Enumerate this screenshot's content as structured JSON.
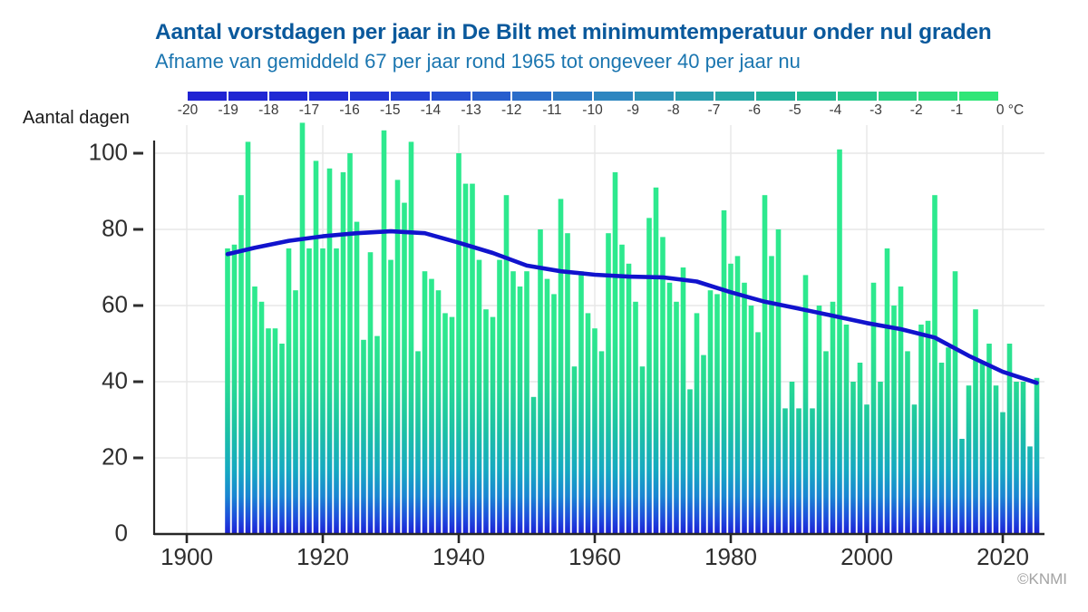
{
  "header": {
    "title": "Aantal vorstdagen per jaar in De Bilt met minimumtemperatuur onder nul graden",
    "subtitle": "Afname van gemiddeld 67 per jaar rond 1965 tot ongeveer 40 per jaar nu"
  },
  "colorbar": {
    "tick_labels": [
      "-20",
      "-19",
      "-18",
      "-17",
      "-16",
      "-15",
      "-14",
      "-13",
      "-12",
      "-11",
      "-10",
      "-9",
      "-8",
      "-7",
      "-6",
      "-5",
      "-4",
      "-3",
      "-2",
      "-1",
      "0 °C"
    ],
    "segment_colors": [
      "#2023d3",
      "#2026d3",
      "#2029d4",
      "#212ed5",
      "#2236d6",
      "#2340d5",
      "#254ed2",
      "#275dcd",
      "#2a6cc9",
      "#2d7ac5",
      "#2e86c0",
      "#2c92b8",
      "#289daf",
      "#24a7a6",
      "#20b19c",
      "#20bb93",
      "#24c78b",
      "#29d184",
      "#2ddc7e",
      "#30e677"
    ]
  },
  "axes": {
    "y_title": "Aantal dagen",
    "y_ticks": [
      0,
      20,
      40,
      60,
      80,
      100
    ],
    "x_ticks": [
      1900,
      1920,
      1940,
      1960,
      1980,
      2000,
      2020
    ]
  },
  "credit": "©KNMI",
  "colors": {
    "title": "#0a599c",
    "subtitle": "#1b76b0",
    "trend_line": "#1113cd",
    "axis": "#262626",
    "grid": "#e7e7e7",
    "bar_gradient": [
      [
        "0",
        "#1b1fd6"
      ],
      [
        "0.07",
        "#1e49dc"
      ],
      [
        "0.18",
        "#1a85d2"
      ],
      [
        "0.30",
        "#16a8c2"
      ],
      [
        "0.50",
        "#1cc2a4"
      ],
      [
        "0.72",
        "#27da93"
      ],
      [
        "1",
        "#2de98e"
      ]
    ]
  },
  "chart_data": {
    "type": "bar",
    "title": "Aantal vorstdagen per jaar in De Bilt met minimumtemperatuur onder nul graden",
    "subtitle": "Afname van gemiddeld 67 per jaar rond 1965 tot ongeveer 40 per jaar nu",
    "xlabel": "",
    "ylabel": "Aantal dagen",
    "ylim": [
      0,
      110
    ],
    "xlim": [
      1896,
      2028
    ],
    "grid": true,
    "legend": "color scale -20..0 °C of daily minimum temperature",
    "start_year": 1906,
    "end_year": 2025,
    "values": [
      75,
      76,
      89,
      103,
      65,
      61,
      54,
      54,
      50,
      75,
      64,
      108,
      75,
      98,
      75,
      96,
      75,
      95,
      100,
      82,
      51,
      74,
      52,
      106,
      72,
      93,
      87,
      103,
      48,
      69,
      67,
      64,
      58,
      57,
      100,
      92,
      92,
      72,
      59,
      57,
      72,
      89,
      69,
      65,
      69,
      36,
      80,
      67,
      63,
      88,
      79,
      44,
      69,
      58,
      54,
      48,
      79,
      95,
      76,
      71,
      61,
      44,
      83,
      91,
      78,
      66,
      61,
      70,
      38,
      58,
      47,
      64,
      63,
      85,
      71,
      73,
      66,
      60,
      53,
      89,
      73,
      80,
      33,
      40,
      33,
      68,
      33,
      60,
      48,
      61,
      101,
      55,
      40,
      45,
      34,
      66,
      40,
      75,
      60,
      65,
      48,
      34,
      55,
      56,
      89,
      45,
      49,
      69,
      25,
      39,
      59,
      45,
      50,
      39,
      32,
      50,
      40,
      40,
      23,
      41
    ],
    "trend": {
      "years": [
        1906,
        1910,
        1915,
        1920,
        1925,
        1930,
        1935,
        1940,
        1945,
        1950,
        1955,
        1960,
        1965,
        1970,
        1975,
        1980,
        1985,
        1990,
        1995,
        2000,
        2005,
        2010,
        2015,
        2020,
        2025
      ],
      "values": [
        73.5,
        75.2,
        77,
        78.2,
        79,
        79.5,
        79,
        76.5,
        73.8,
        70.5,
        69,
        68.1,
        67.6,
        67.4,
        66.3,
        63.5,
        61,
        59.2,
        57.3,
        55.4,
        53.8,
        51.6,
        46.8,
        42.6,
        39.7
      ]
    }
  }
}
